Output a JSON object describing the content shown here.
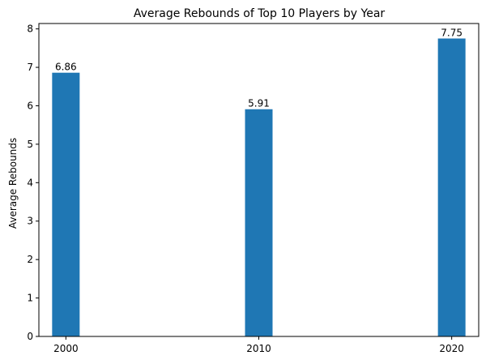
{
  "chart_data": {
    "type": "bar",
    "title": "Average Rebounds of Top 10 Players by Year",
    "xlabel": "",
    "ylabel": "Average Rebounds",
    "categories": [
      "2000",
      "2010",
      "2020"
    ],
    "values": [
      6.86,
      5.91,
      7.75
    ],
    "data_labels": [
      "6.86",
      "5.91",
      "7.75"
    ],
    "x": [
      2000,
      2010,
      2020
    ],
    "ylim": [
      0,
      8.14
    ],
    "yticks": [
      0,
      1,
      2,
      3,
      4,
      5,
      6,
      7,
      8
    ],
    "ytick_labels": [
      "0",
      "1",
      "2",
      "3",
      "4",
      "5",
      "6",
      "7",
      "8"
    ],
    "grid": false,
    "legend": "none",
    "bar_color": "#1f77b4"
  }
}
